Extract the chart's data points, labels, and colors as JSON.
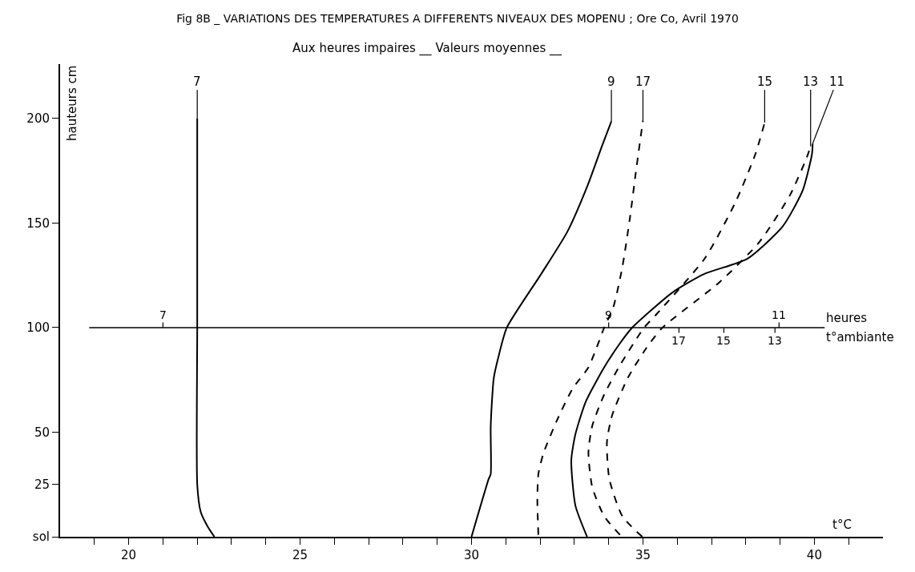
{
  "chart_data": {
    "type": "line",
    "title": "Fig 8B _ VARIATIONS DES TEMPERATURES A DIFFERENTS NIVEAUX DES MOPENU ; Ore Co, Avril 1970",
    "subtitle": "Aux heures impaires __ Valeurs moyennes __",
    "xlabel": "t°C",
    "ylabel": "hauteurs cm",
    "xlim": [
      18,
      42
    ],
    "ylim": [
      0,
      226
    ],
    "xticks": [
      {
        "value": 19,
        "label": null
      },
      20,
      {
        "value": 21,
        "label": null
      },
      {
        "value": 22,
        "label": null
      },
      {
        "value": 23,
        "label": null
      },
      {
        "value": 24,
        "label": null
      },
      25,
      {
        "value": 26,
        "label": null
      },
      {
        "value": 27,
        "label": null
      },
      {
        "value": 28,
        "label": null
      },
      {
        "value": 29,
        "label": null
      },
      30,
      {
        "value": 31,
        "label": null
      },
      {
        "value": 32,
        "label": null
      },
      {
        "value": 33,
        "label": null
      },
      {
        "value": 34,
        "label": null
      },
      35,
      {
        "value": 36,
        "label": null
      },
      {
        "value": 37,
        "label": null
      },
      {
        "value": 38,
        "label": null
      },
      {
        "value": 39,
        "label": null
      },
      40,
      {
        "value": 41,
        "label": null
      }
    ],
    "yticks": [
      {
        "value": 0,
        "label": "sol"
      },
      25,
      50,
      100,
      150,
      200
    ],
    "legend": false,
    "series": [
      {
        "color": "#000000",
        "line_style": "solid",
        "x": [
          22.5,
          22.3,
          22.1,
          22.0,
          22.0,
          22.0
        ],
        "values": [
          0,
          5,
          12,
          25,
          100,
          200
        ]
      },
      {
        "color": "#000000",
        "line_style": "solid",
        "x": [
          30.0,
          30.5,
          30.56,
          30.56,
          30.65,
          30.8,
          31.03,
          32.03,
          32.8,
          33.41,
          33.8,
          34.08
        ],
        "values": [
          0,
          27.6,
          30,
          53,
          76,
          87,
          100,
          125.6,
          146,
          169,
          186.6,
          198.7
        ]
      },
      {
        "color": "#000000",
        "line_style": "dashed",
        "x": [
          31.95,
          31.92,
          31.95,
          32.1,
          32.49,
          32.95,
          33.41,
          33.87,
          34.14,
          34.4,
          34.63,
          34.79,
          35.0
        ],
        "values": [
          0.9,
          17.4,
          30,
          40,
          55.6,
          70.9,
          81,
          100,
          110,
          129,
          153.6,
          174,
          199
        ]
      },
      {
        "color": "#000000",
        "line_style": "dashed",
        "x": [
          34.33,
          33.87,
          33.52,
          33.41,
          33.52,
          33.87,
          34.33,
          35.02,
          35.4,
          36.8,
          37.7,
          38.28,
          38.55
        ],
        "values": [
          0.9,
          9.8,
          23.8,
          40.3,
          53,
          68,
          82,
          99.7,
          106.5,
          133,
          160,
          183,
          198
        ]
      },
      {
        "color": "#000000",
        "line_style": "dashed",
        "x": [
          34.98,
          34.4,
          34.02,
          33.95,
          34.1,
          34.56,
          35.09,
          35.55,
          37.24,
          38.4,
          39.3,
          39.77,
          39.89
        ],
        "values": [
          0,
          9.8,
          27.6,
          45.4,
          58,
          76,
          90,
          99.7,
          121.8,
          141,
          163.7,
          181,
          186.6
        ]
      },
      {
        "color": "#000000",
        "line_style": "solid",
        "x": [
          33.37,
          33.03,
          32.91,
          33.03,
          33.33,
          33.87,
          34.33,
          34.67,
          35.86,
          36.78,
          38.05,
          39.08,
          39.66,
          39.93,
          39.95
        ],
        "values": [
          0,
          14.9,
          36.5,
          49,
          64.5,
          81,
          92.5,
          99.7,
          116.8,
          125.6,
          133,
          148.5,
          165.6,
          183,
          188
        ]
      }
    ],
    "ref_lines": [
      {
        "axis": "y",
        "value": 100,
        "color": "#000000",
        "line_style": "solid"
      }
    ],
    "annotations": [
      {
        "text": "7",
        "x": 22.0,
        "y": 200
      },
      {
        "text": "9",
        "x": 34.08,
        "y": 198.7
      },
      {
        "text": "17",
        "x": 35.0,
        "y": 199
      },
      {
        "text": "15",
        "x": 38.55,
        "y": 198
      },
      {
        "text": "13",
        "x": 39.89,
        "y": 186.6
      },
      {
        "text": "11",
        "x": 39.95,
        "y": 188
      },
      {
        "text": "7",
        "x": 21.0,
        "y": 100
      },
      {
        "text": "9",
        "x": 34.0,
        "y": 100
      },
      {
        "text": "11",
        "x": 38.97,
        "y": 100
      },
      {
        "text": "17",
        "x": 36.05,
        "y": 100
      },
      {
        "text": "15",
        "x": 37.36,
        "y": 100
      },
      {
        "text": "13",
        "x": 38.85,
        "y": 100
      },
      "heures",
      "t°ambiante"
    ]
  }
}
